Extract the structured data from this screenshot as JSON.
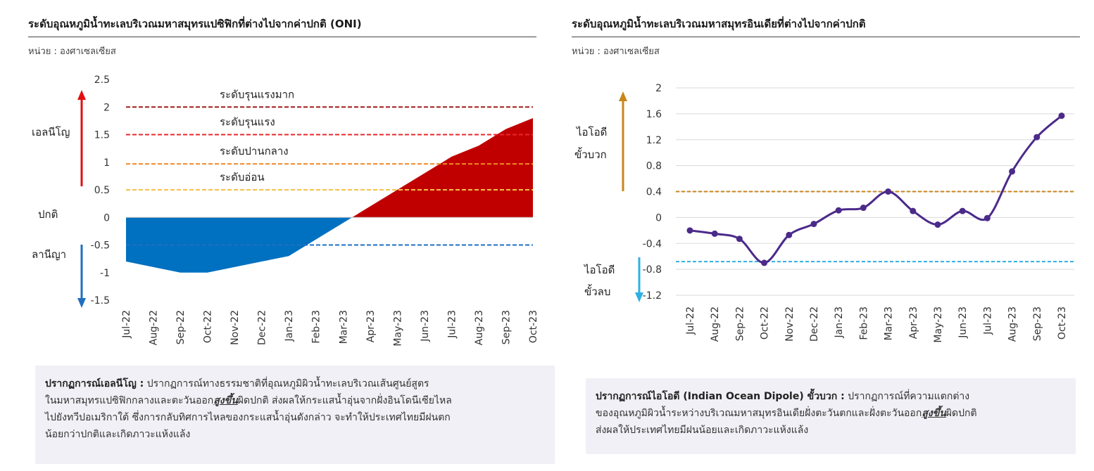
{
  "left": {
    "title": "ระดับอุณหภูมิน้ำทะเลบริเวณมหาสมุทรแปซิฟิกที่ต่างไปจากค่าปกติ (ONI)",
    "unit": "หน่วย : องศาเซลเซียส",
    "side_labels": {
      "el_nino": "เอลนีโญ",
      "normal": "ปกติ",
      "la_nina": "ลานีญา"
    },
    "levels": [
      {
        "label": "ระดับรุนแรงมาก",
        "value": 2.0,
        "color": "#a01c1c"
      },
      {
        "label": "ระดับรุนแรง",
        "value": 1.5,
        "color": "#e8272b"
      },
      {
        "label": "ระดับปานกลาง",
        "value": 0.97,
        "color": "#f08a2a"
      },
      {
        "label": "ระดับอ่อน",
        "value": 0.5,
        "color": "#f4c04a"
      }
    ],
    "la_nina_threshold": {
      "value": -0.5,
      "color": "#1f6fc0"
    },
    "colors": {
      "positive": "#c00000",
      "negative": "#0070c0",
      "up_arrow": "#e01010",
      "down_arrow": "#1f6fc0"
    },
    "box": {
      "heading": "ปรากฏการณ์เอลนีโญ :",
      "line1_rest": " ปรากฏการณ์ทางธรรมชาติที่อุณหภูมิผิวน้ำทะเลบริเวณเส้นศูนย์สูตร",
      "line2_pre": "ในมหาสมุทรแปซิฟิกกลางและตะวันออก",
      "line2_hl": "สูงขึ้น",
      "line2_post": "ผิดปกติ  ส่งผลให้กระแสน้ำอุ่นจากฝั่งอินโดนีเซียไหล",
      "line3": "ไปยังทวีปอเมริกาใต้  ซึ่งการกลับทิศการไหลของกระแสน้ำอุ่นดังกล่าว  จะทำให้ประเทศไทยมีฝนตก",
      "line4": "น้อยกว่าปกติและเกิดภาวะแห้งแล้ง"
    }
  },
  "right": {
    "title": "ระดับอุณหภูมิน้ำทะเลบริเวณมหาสมุทรอินเดียที่ต่างไปจากค่าปกติ",
    "unit": "หน่วย : องศาเซลเซียส",
    "side_labels": {
      "pos_1": "ไอโอดี",
      "pos_2": "ขั้วบวก",
      "neg_1": "ไอโอดี",
      "neg_2": "ขั้วลบ"
    },
    "colors": {
      "line": "#4b2a8a",
      "pos_threshold": "#c8861a",
      "neg_threshold": "#2fb0e0",
      "grid": "#d9d9d9"
    },
    "box": {
      "heading": "ปรากฏการณ์ไอโอดี (Indian Ocean Dipole) ขั้วบวก :",
      "line1_rest": " ปรากฏการณ์ที่ความแตกต่าง",
      "line2_pre": "ของอุณหภูมิผิวน้ำระหว่างบริเวณมหาสมุทรอินเดียฝั่งตะวันตกและฝั่งตะวันออก",
      "line2_hl": "สูงขึ้น",
      "line2_post": "ผิดปกติ",
      "line3": "ส่งผลให้ประเทศไทยมีฝนน้อยและเกิดภาวะแห้งแล้ง"
    }
  },
  "chart_data": [
    {
      "type": "area",
      "categories": [
        "Jul-22",
        "Aug-22",
        "Sep-22",
        "Oct-22",
        "Nov-22",
        "Dec-22",
        "Jan-23",
        "Feb-23",
        "Mar-23",
        "Apr-23",
        "May-23",
        "Jun-23",
        "Jul-23",
        "Aug-23",
        "Sep-23",
        "Oct-23"
      ],
      "values": [
        -0.8,
        -0.9,
        -1.0,
        -1.0,
        -0.9,
        -0.8,
        -0.7,
        -0.4,
        -0.1,
        0.2,
        0.5,
        0.8,
        1.1,
        1.3,
        1.6,
        1.8
      ],
      "y_ticks": [
        2.5,
        2,
        1.5,
        1,
        0.5,
        0,
        -0.5,
        -1,
        -1.5
      ],
      "ylim": [
        -1.5,
        2.5
      ],
      "thresholds": [
        2.0,
        1.5,
        0.97,
        0.5,
        -0.5
      ],
      "grid": false
    },
    {
      "type": "line",
      "categories": [
        "Jul-22",
        "Aug-22",
        "Sep-22",
        "Oct-22",
        "Nov-22",
        "Dec-22",
        "Jan-23",
        "Feb-23",
        "Mar-23",
        "Apr-23",
        "May-23",
        "Jun-23",
        "Jul-23",
        "Aug-23",
        "Sep-23",
        "Oct-23"
      ],
      "values": [
        -0.2,
        -0.25,
        -0.33,
        -0.7,
        -0.27,
        -0.1,
        0.11,
        0.15,
        0.4,
        0.1,
        -0.11,
        0.1,
        -0.01,
        0.71,
        1.24,
        1.57
      ],
      "y_ticks": [
        2,
        1.6,
        1.2,
        0.8,
        0.4,
        0,
        -0.4,
        -0.8,
        -1.2
      ],
      "ylim": [
        -1.2,
        2
      ],
      "thresholds": [
        0.4,
        -0.68
      ],
      "grid": true
    }
  ]
}
